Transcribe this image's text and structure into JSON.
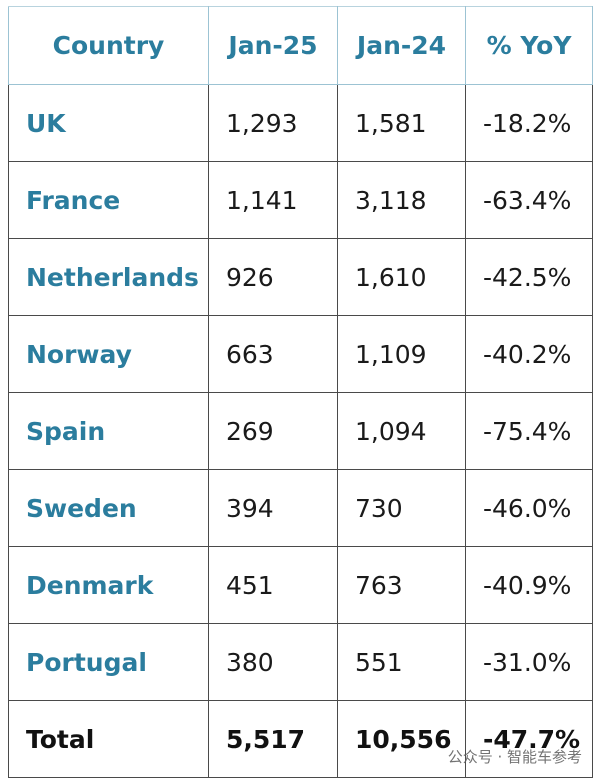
{
  "table": {
    "header": [
      "Country",
      "Jan-25",
      "Jan-24",
      "% YoY"
    ],
    "rows": [
      [
        "UK",
        "1,293",
        "1,581",
        "-18.2%"
      ],
      [
        "France",
        "1,141",
        "3,118",
        "-63.4%"
      ],
      [
        "Netherlands",
        "926",
        "1,610",
        "-42.5%"
      ],
      [
        "Norway",
        "663",
        "1,109",
        "-40.2%"
      ],
      [
        "Spain",
        "269",
        "1,094",
        "-75.4%"
      ],
      [
        "Sweden",
        "394",
        "730",
        "-46.0%"
      ],
      [
        "Denmark",
        "451",
        "763",
        "-40.9%"
      ],
      [
        "Portugal",
        "380",
        "551",
        "-31.0%"
      ]
    ],
    "total": [
      "Total",
      "5,517",
      "10,556",
      "-47.7%"
    ]
  },
  "watermark": "公众号 · 智能车参考"
}
